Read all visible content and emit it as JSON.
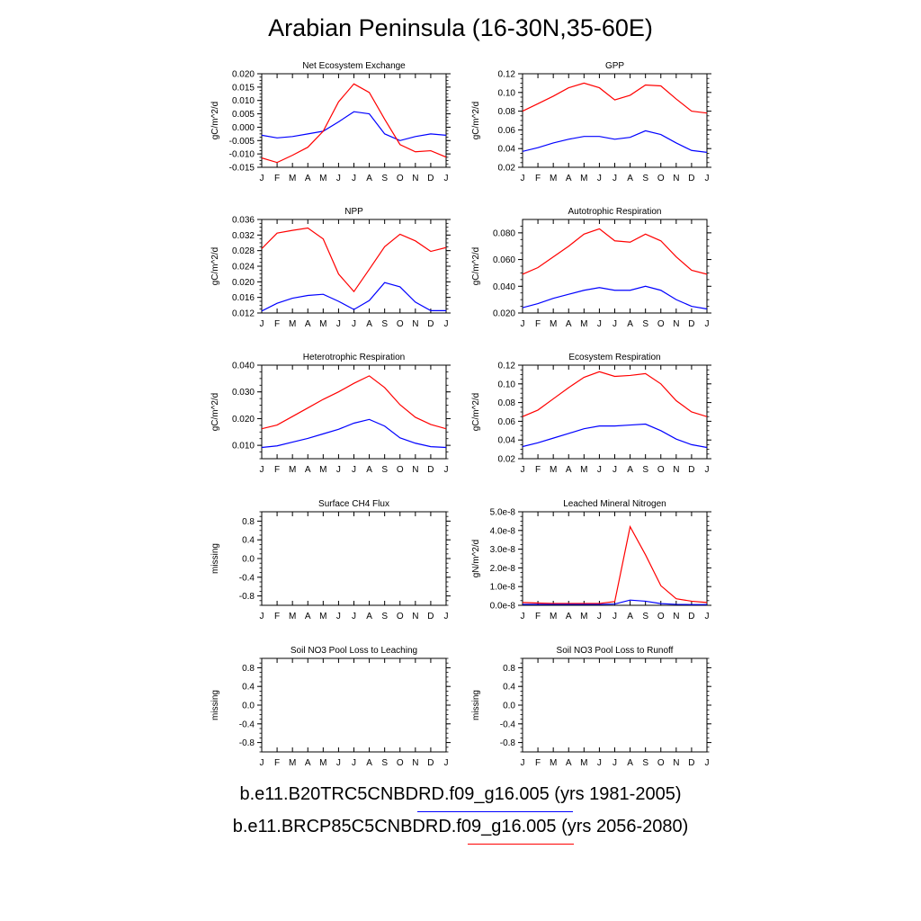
{
  "title": "Arabian Peninsula (16-30N,35-60E)",
  "months": [
    "J",
    "F",
    "M",
    "A",
    "M",
    "J",
    "J",
    "A",
    "S",
    "O",
    "N",
    "D",
    "J"
  ],
  "colors": {
    "historical": "#0000ff",
    "future": "#ff0000"
  },
  "legend": [
    {
      "label": "b.e11.B20TRC5CNBDRD.f09_g16.005 (yrs 1981-2005)",
      "color": "#0000ff"
    },
    {
      "label": "b.e11.BRCP85C5CNBDRD.f09_g16.005 (yrs 2056-2080)",
      "color": "#ff0000"
    }
  ],
  "chart_data": [
    {
      "type": "line",
      "title": "Net Ecosystem Exchange",
      "ylabel": "gC/m^2/d",
      "ylim": [
        -0.015,
        0.02
      ],
      "yticks": [
        "-0.015",
        "-0.010",
        "-0.005",
        "0.000",
        "0.005",
        "0.010",
        "0.015",
        "0.020"
      ],
      "ytick_values": [
        -0.015,
        -0.01,
        -0.005,
        0.0,
        0.005,
        0.01,
        0.015,
        0.02
      ],
      "series": [
        {
          "color": "#0000ff",
          "values": [
            -0.003,
            -0.004,
            -0.0035,
            -0.0025,
            -0.0015,
            0.002,
            0.0058,
            0.005,
            -0.0025,
            -0.005,
            -0.0035,
            -0.0025,
            -0.003
          ]
        },
        {
          "color": "#ff0000",
          "values": [
            -0.0115,
            -0.0132,
            -0.0105,
            -0.0075,
            -0.0015,
            0.0095,
            0.0162,
            0.013,
            0.003,
            -0.0065,
            -0.0092,
            -0.0088,
            -0.0112
          ]
        }
      ]
    },
    {
      "type": "line",
      "title": "GPP",
      "ylabel": "gC/m^2/d",
      "ylim": [
        0.02,
        0.12
      ],
      "yticks": [
        "0.02",
        "0.04",
        "0.06",
        "0.08",
        "0.10",
        "0.12"
      ],
      "ytick_values": [
        0.02,
        0.04,
        0.06,
        0.08,
        0.1,
        0.12
      ],
      "series": [
        {
          "color": "#0000ff",
          "values": [
            0.037,
            0.041,
            0.046,
            0.05,
            0.053,
            0.053,
            0.05,
            0.052,
            0.059,
            0.055,
            0.046,
            0.038,
            0.036
          ]
        },
        {
          "color": "#ff0000",
          "values": [
            0.08,
            0.088,
            0.096,
            0.105,
            0.11,
            0.105,
            0.092,
            0.097,
            0.108,
            0.107,
            0.093,
            0.08,
            0.078
          ]
        }
      ]
    },
    {
      "type": "line",
      "title": "NPP",
      "ylabel": "gC/m^2/d",
      "ylim": [
        0.012,
        0.036
      ],
      "yticks": [
        "0.012",
        "0.016",
        "0.020",
        "0.024",
        "0.028",
        "0.032",
        "0.036"
      ],
      "ytick_values": [
        0.012,
        0.016,
        0.02,
        0.024,
        0.028,
        0.032,
        0.036
      ],
      "series": [
        {
          "color": "#0000ff",
          "values": [
            0.0125,
            0.0145,
            0.0158,
            0.0165,
            0.0168,
            0.015,
            0.0129,
            0.0152,
            0.0198,
            0.0187,
            0.0148,
            0.0126,
            0.0126
          ]
        },
        {
          "color": "#ff0000",
          "values": [
            0.0285,
            0.0325,
            0.0332,
            0.0338,
            0.031,
            0.022,
            0.0175,
            0.0232,
            0.029,
            0.0322,
            0.0305,
            0.0278,
            0.0288
          ]
        }
      ]
    },
    {
      "type": "line",
      "title": "Autotrophic Respiration",
      "ylabel": "gC/m^2/d",
      "ylim": [
        0.02,
        0.09
      ],
      "yticks": [
        "0.020",
        "0.040",
        "0.060",
        "0.080"
      ],
      "ytick_values": [
        0.02,
        0.04,
        0.06,
        0.08
      ],
      "series": [
        {
          "color": "#0000ff",
          "values": [
            0.024,
            0.027,
            0.031,
            0.034,
            0.037,
            0.039,
            0.037,
            0.037,
            0.04,
            0.037,
            0.03,
            0.025,
            0.023
          ]
        },
        {
          "color": "#ff0000",
          "values": [
            0.049,
            0.054,
            0.062,
            0.07,
            0.079,
            0.083,
            0.074,
            0.073,
            0.079,
            0.074,
            0.062,
            0.052,
            0.049
          ]
        }
      ]
    },
    {
      "type": "line",
      "title": "Heterotrophic Respiration",
      "ylabel": "gC/m^2/d",
      "ylim": [
        0.005,
        0.04
      ],
      "yticks": [
        "0.010",
        "0.020",
        "0.030",
        "0.040"
      ],
      "ytick_values": [
        0.01,
        0.02,
        0.03,
        0.04
      ],
      "series": [
        {
          "color": "#0000ff",
          "values": [
            0.0092,
            0.0098,
            0.0112,
            0.0126,
            0.0143,
            0.016,
            0.0183,
            0.0197,
            0.0172,
            0.0128,
            0.0108,
            0.0095,
            0.0092
          ]
        },
        {
          "color": "#ff0000",
          "values": [
            0.0162,
            0.0176,
            0.0208,
            0.024,
            0.0272,
            0.03,
            0.0332,
            0.036,
            0.0316,
            0.0252,
            0.0205,
            0.0178,
            0.0162
          ]
        }
      ]
    },
    {
      "type": "line",
      "title": "Ecosystem Respiration",
      "ylabel": "gC/m^2/d",
      "ylim": [
        0.02,
        0.12
      ],
      "yticks": [
        "0.02",
        "0.04",
        "0.06",
        "0.08",
        "0.10",
        "0.12"
      ],
      "ytick_values": [
        0.02,
        0.04,
        0.06,
        0.08,
        0.1,
        0.12
      ],
      "series": [
        {
          "color": "#0000ff",
          "values": [
            0.033,
            0.037,
            0.042,
            0.047,
            0.052,
            0.055,
            0.055,
            0.056,
            0.057,
            0.05,
            0.041,
            0.035,
            0.032
          ]
        },
        {
          "color": "#ff0000",
          "values": [
            0.065,
            0.072,
            0.084,
            0.096,
            0.107,
            0.113,
            0.108,
            0.109,
            0.111,
            0.1,
            0.082,
            0.07,
            0.065
          ]
        }
      ]
    },
    {
      "type": "line",
      "title": "Surface CH4 Flux",
      "ylabel": "missing",
      "ylim": [
        -1.0,
        1.0
      ],
      "yticks": [
        "-0.8",
        "-0.4",
        "0.0",
        "0.4",
        "0.8"
      ],
      "ytick_values": [
        -0.8,
        -0.4,
        0.0,
        0.4,
        0.8
      ],
      "series": []
    },
    {
      "type": "line",
      "title": "Leached Mineral Nitrogen",
      "ylabel": "gN/m^2/d",
      "ylim": [
        0,
        5e-08
      ],
      "yticks": [
        "0.0e-8",
        "1.0e-8",
        "2.0e-8",
        "3.0e-8",
        "4.0e-8",
        "5.0e-8"
      ],
      "ytick_values": [
        0,
        1e-08,
        2e-08,
        3e-08,
        4e-08,
        5e-08
      ],
      "series": [
        {
          "color": "#0000ff",
          "values": [
            5e-10,
            5e-10,
            5e-10,
            5e-10,
            5e-10,
            5e-10,
            7e-10,
            2.8e-09,
            2.2e-09,
            9e-10,
            5e-10,
            4e-10,
            4e-10
          ]
        },
        {
          "color": "#ff0000",
          "values": [
            1.5e-09,
            1.2e-09,
            1e-09,
            1e-09,
            1e-09,
            1e-09,
            2e-09,
            4.2e-08,
            2.7e-08,
            1.05e-08,
            3.5e-09,
            2.2e-09,
            1.5e-09
          ]
        }
      ]
    },
    {
      "type": "line",
      "title": "Soil NO3 Pool Loss to Leaching",
      "ylabel": "missing",
      "ylim": [
        -1.0,
        1.0
      ],
      "yticks": [
        "-0.8",
        "-0.4",
        "0.0",
        "0.4",
        "0.8"
      ],
      "ytick_values": [
        -0.8,
        -0.4,
        0.0,
        0.4,
        0.8
      ],
      "series": []
    },
    {
      "type": "line",
      "title": "Soil NO3 Pool Loss to Runoff",
      "ylabel": "missing",
      "ylim": [
        -1.0,
        1.0
      ],
      "yticks": [
        "-0.8",
        "-0.4",
        "0.0",
        "0.4",
        "0.8"
      ],
      "ytick_values": [
        -0.8,
        -0.4,
        0.0,
        0.4,
        0.8
      ],
      "series": []
    }
  ]
}
